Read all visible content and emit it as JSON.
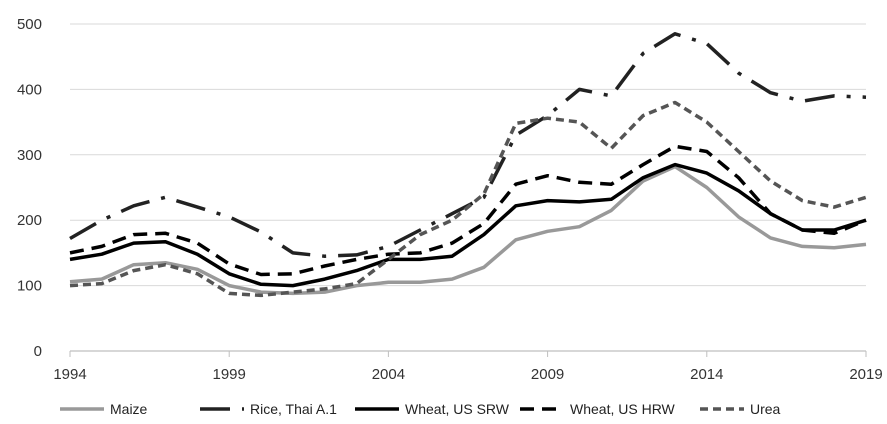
{
  "chart_data": {
    "type": "line",
    "x": [
      1994,
      1995,
      1996,
      1997,
      1998,
      1999,
      2000,
      2001,
      2002,
      2003,
      2004,
      2005,
      2006,
      2007,
      2008,
      2009,
      2010,
      2011,
      2012,
      2013,
      2014,
      2015,
      2016,
      2017,
      2018,
      2019
    ],
    "series": [
      {
        "name": "Maize",
        "color": "#999999",
        "dash": "solid",
        "values": [
          106,
          110,
          132,
          135,
          125,
          100,
          90,
          88,
          90,
          100,
          105,
          105,
          110,
          128,
          170,
          183,
          190,
          215,
          260,
          282,
          250,
          205,
          173,
          160,
          158,
          163
        ]
      },
      {
        "name": "Rice, Thai A.1",
        "color": "#222222",
        "dash": "long-dash-dot",
        "values": [
          172,
          200,
          222,
          235,
          220,
          205,
          182,
          150,
          145,
          147,
          160,
          185,
          210,
          235,
          330,
          360,
          400,
          390,
          455,
          485,
          470,
          425,
          395,
          382,
          390,
          388
        ]
      },
      {
        "name": "Wheat, US SRW",
        "color": "#000000",
        "dash": "solid",
        "values": [
          140,
          148,
          165,
          167,
          148,
          118,
          102,
          100,
          110,
          123,
          140,
          140,
          145,
          178,
          222,
          230,
          228,
          232,
          265,
          285,
          272,
          245,
          210,
          185,
          185,
          200
        ]
      },
      {
        "name": "Wheat, US HRW",
        "color": "#000000",
        "dash": "dash",
        "values": [
          150,
          160,
          178,
          180,
          165,
          133,
          117,
          118,
          130,
          140,
          148,
          150,
          165,
          195,
          255,
          268,
          258,
          255,
          285,
          313,
          305,
          265,
          210,
          185,
          180,
          200
        ]
      },
      {
        "name": "Urea",
        "color": "#555555",
        "dash": "short-dash",
        "values": [
          100,
          103,
          123,
          132,
          118,
          88,
          85,
          90,
          95,
          103,
          140,
          178,
          200,
          240,
          348,
          356,
          350,
          310,
          360,
          380,
          350,
          305,
          260,
          230,
          220,
          235
        ]
      }
    ],
    "y_ticks": [
      "0",
      "100",
      "200",
      "300",
      "400",
      "500"
    ],
    "x_ticks": [
      "1994",
      "1999",
      "2004",
      "2009",
      "2014",
      "2019"
    ],
    "xlim": [
      1994,
      2019
    ],
    "ylim": [
      0,
      500
    ],
    "grid": "horizontal",
    "legend_position": "bottom"
  }
}
